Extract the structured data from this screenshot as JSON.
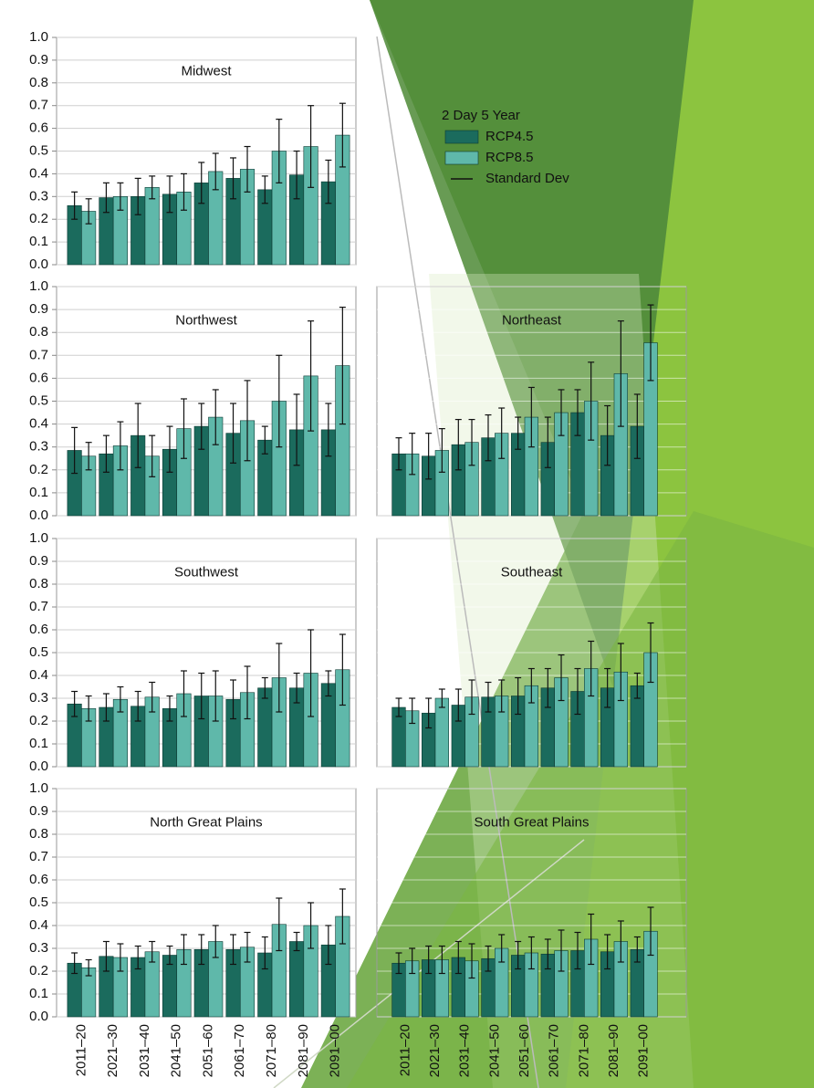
{
  "chart_data": [
    {
      "type": "bar",
      "title": "Midwest",
      "legend_title": "2 Day 5 Year",
      "error_label": "Standard Dev",
      "categories": [
        null,
        null,
        null,
        null,
        null,
        null,
        null,
        null,
        null
      ],
      "series": [
        {
          "name": "RCP4.5",
          "color": "#1b6b5d",
          "values": [
            0.26,
            0.295,
            0.3,
            0.31,
            0.36,
            0.38,
            0.33,
            0.395,
            0.365
          ],
          "errors": [
            0.06,
            0.065,
            0.08,
            0.08,
            0.09,
            0.09,
            0.06,
            0.105,
            0.095
          ]
        },
        {
          "name": "RCP8.5",
          "color": "#5fb8aa",
          "values": [
            0.235,
            0.3,
            0.34,
            0.32,
            0.41,
            0.42,
            0.5,
            0.52,
            0.57
          ],
          "errors": [
            0.055,
            0.06,
            0.05,
            0.08,
            0.08,
            0.1,
            0.14,
            0.18,
            0.14
          ]
        }
      ],
      "ylim": [
        0,
        1
      ],
      "yticks": [
        {
          "value": 0,
          "label": "0.0"
        },
        0.1,
        0.2,
        0.3,
        0.4,
        0.5,
        0.6,
        0.7,
        0.8,
        0.9,
        {
          "value": 1,
          "label": "1.0"
        }
      ],
      "grid": true
    },
    {
      "type": "bar",
      "title": "Northwest",
      "categories": [
        null,
        null,
        null,
        null,
        null,
        null,
        null,
        null,
        null
      ],
      "series": [
        {
          "color": "#1b6b5d",
          "values": [
            0.285,
            0.27,
            0.35,
            0.29,
            0.39,
            0.36,
            0.33,
            0.375,
            0.375
          ],
          "errors": [
            0.1,
            0.08,
            0.14,
            0.1,
            0.1,
            0.13,
            0.06,
            0.155,
            0.115
          ]
        },
        {
          "color": "#5fb8aa",
          "values": [
            0.26,
            0.305,
            0.26,
            0.38,
            0.43,
            0.415,
            0.5,
            0.61,
            0.655
          ],
          "errors": [
            0.06,
            0.105,
            0.09,
            0.13,
            0.12,
            0.175,
            0.2,
            0.24,
            0.255
          ]
        }
      ],
      "ylim": [
        0,
        1
      ],
      "yticks": [
        {
          "value": 0,
          "label": "0.0"
        },
        0.1,
        0.2,
        0.3,
        0.4,
        0.5,
        0.6,
        0.7,
        0.8,
        0.9,
        {
          "value": 1,
          "label": "1.0"
        }
      ],
      "grid": true
    },
    {
      "type": "bar",
      "title": "Northeast",
      "categories": [
        null,
        null,
        null,
        null,
        null,
        null,
        null,
        null,
        null
      ],
      "series": [
        {
          "color": "#1b6b5d",
          "values": [
            0.27,
            0.26,
            0.31,
            0.34,
            0.36,
            0.32,
            0.45,
            0.35,
            0.39
          ],
          "errors": [
            0.07,
            0.1,
            0.11,
            0.1,
            0.07,
            0.11,
            0.1,
            0.13,
            0.14
          ]
        },
        {
          "color": "#5fb8aa",
          "values": [
            0.27,
            0.285,
            0.32,
            0.36,
            0.43,
            0.45,
            0.5,
            0.62,
            0.755
          ],
          "errors": [
            0.09,
            0.095,
            0.1,
            0.11,
            0.13,
            0.1,
            0.17,
            0.23,
            0.165
          ]
        }
      ],
      "ylim": [
        0,
        1
      ],
      "yticks": [
        0,
        0.1,
        0.2,
        0.3,
        0.4,
        0.5,
        0.6,
        0.7,
        0.8,
        0.9,
        1
      ],
      "grid": true
    },
    {
      "type": "bar",
      "title": "Southwest",
      "categories": [
        null,
        null,
        null,
        null,
        null,
        null,
        null,
        null,
        null
      ],
      "series": [
        {
          "color": "#1b6b5d",
          "values": [
            0.275,
            0.26,
            0.265,
            0.255,
            0.31,
            0.295,
            0.345,
            0.345,
            0.365
          ],
          "errors": [
            0.055,
            0.06,
            0.065,
            0.055,
            0.1,
            0.085,
            0.045,
            0.065,
            0.055
          ]
        },
        {
          "color": "#5fb8aa",
          "values": [
            0.255,
            0.295,
            0.305,
            0.32,
            0.31,
            0.325,
            0.39,
            0.41,
            0.425
          ],
          "errors": [
            0.055,
            0.055,
            0.065,
            0.1,
            0.11,
            0.115,
            0.15,
            0.19,
            0.155
          ]
        }
      ],
      "ylim": [
        0,
        1
      ],
      "yticks": [
        {
          "value": 0,
          "label": "0.0"
        },
        0.1,
        0.2,
        0.3,
        0.4,
        0.5,
        0.6,
        0.7,
        0.8,
        0.9,
        {
          "value": 1,
          "label": "1.0"
        }
      ],
      "grid": true
    },
    {
      "type": "bar",
      "title": "Southeast",
      "categories": [
        null,
        null,
        null,
        null,
        null,
        null,
        null,
        null,
        null
      ],
      "series": [
        {
          "color": "#1b6b5d",
          "values": [
            0.26,
            0.235,
            0.27,
            0.305,
            0.31,
            0.345,
            0.33,
            0.345,
            0.355
          ],
          "errors": [
            0.04,
            0.065,
            0.07,
            0.065,
            0.08,
            0.085,
            0.1,
            0.085,
            0.055
          ]
        },
        {
          "color": "#5fb8aa",
          "values": [
            0.245,
            0.3,
            0.305,
            0.31,
            0.355,
            0.39,
            0.43,
            0.415,
            0.5
          ],
          "errors": [
            0.055,
            0.04,
            0.075,
            0.07,
            0.075,
            0.1,
            0.12,
            0.125,
            0.13
          ]
        }
      ],
      "ylim": [
        0,
        1
      ],
      "yticks": [
        0,
        0.1,
        0.2,
        0.3,
        0.4,
        0.5,
        0.6,
        0.7,
        0.8,
        0.9,
        1
      ],
      "grid": true
    },
    {
      "type": "bar",
      "title": "North Great Plains",
      "categories": [
        "2011–20",
        "2021–30",
        "2031–40",
        "2041–50",
        "2051–60",
        "2061–70",
        "2071–80",
        "2081–90",
        "2091–00"
      ],
      "series": [
        {
          "color": "#1b6b5d",
          "values": [
            0.235,
            0.265,
            0.26,
            0.27,
            0.295,
            0.295,
            0.28,
            0.33,
            0.315
          ],
          "errors": [
            0.045,
            0.065,
            0.05,
            0.04,
            0.065,
            0.065,
            0.07,
            0.04,
            0.085
          ]
        },
        {
          "color": "#5fb8aa",
          "values": [
            0.215,
            0.26,
            0.285,
            0.295,
            0.33,
            0.305,
            0.405,
            0.4,
            0.44
          ],
          "errors": [
            0.035,
            0.06,
            0.045,
            0.065,
            0.07,
            0.065,
            0.115,
            0.1,
            0.12
          ]
        }
      ],
      "ylim": [
        0,
        1
      ],
      "yticks": [
        {
          "value": 0,
          "label": "0.0"
        },
        0.1,
        0.2,
        0.3,
        0.4,
        0.5,
        0.6,
        0.7,
        0.8,
        0.9,
        {
          "value": 1,
          "label": "1.0"
        }
      ],
      "grid": true
    },
    {
      "type": "bar",
      "title": "South Great Plains",
      "categories": [
        "2011–20",
        "2021–30",
        "2031–40",
        "2041–50",
        "2051–60",
        "2061–70",
        "2071–80",
        "2081–90",
        "2091–00"
      ],
      "series": [
        {
          "color": "#1b6b5d",
          "values": [
            0.235,
            0.25,
            0.26,
            0.255,
            0.27,
            0.275,
            0.29,
            0.285,
            0.295
          ],
          "errors": [
            0.045,
            0.06,
            0.07,
            0.055,
            0.06,
            0.065,
            0.08,
            0.075,
            0.055
          ]
        },
        {
          "color": "#5fb8aa",
          "values": [
            0.245,
            0.25,
            0.245,
            0.3,
            0.28,
            0.29,
            0.34,
            0.33,
            0.375
          ],
          "errors": [
            0.055,
            0.06,
            0.075,
            0.06,
            0.07,
            0.09,
            0.11,
            0.09,
            0.105
          ]
        }
      ],
      "ylim": [
        0,
        1
      ],
      "yticks": [
        0,
        0.1,
        0.2,
        0.3,
        0.4,
        0.5,
        0.6,
        0.7,
        0.8,
        0.9,
        1
      ],
      "grid": true
    }
  ]
}
